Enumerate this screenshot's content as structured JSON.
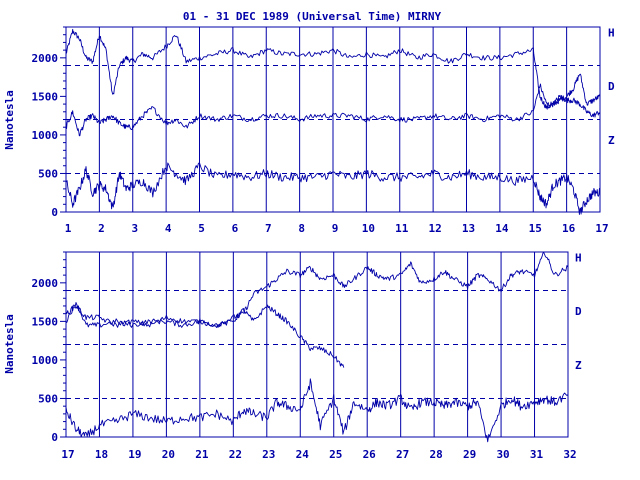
{
  "title": "01 - 31 DEC 1989 (Universal Time) MIRNY",
  "colors": {
    "ink": "#0000a8",
    "background": "#ffffff"
  },
  "chart_data": {
    "type": "line",
    "title": "01 - 31 DEC 1989 (Universal Time) MIRNY",
    "ylabel": "Nanotesla",
    "components": [
      "H",
      "D",
      "Z"
    ],
    "panels": [
      {
        "days": [
          1,
          17
        ],
        "ylim": [
          0,
          2400
        ],
        "yticks": [
          0,
          500,
          1000,
          1500,
          2000
        ],
        "xticks": [
          "1",
          "2",
          "3",
          "4",
          "5",
          "6",
          "7",
          "8",
          "9",
          "10",
          "11",
          "12",
          "13",
          "14",
          "15",
          "16",
          "17"
        ],
        "baselines": {
          "H": 1900,
          "D": 1200,
          "Z": 500
        },
        "series": [
          {
            "name": "H",
            "x": [
              1,
              1.2,
              1.4,
              1.6,
              1.8,
              2,
              2.2,
              2.4,
              2.6,
              2.8,
              3,
              3.3,
              3.6,
              4,
              4.3,
              4.6,
              5,
              5.5,
              6,
              6.5,
              7,
              7.5,
              8,
              8.5,
              9,
              9.5,
              10,
              10.5,
              11,
              11.5,
              12,
              12.5,
              13,
              13.5,
              14,
              14.5,
              15,
              15.2,
              15.4,
              15.6,
              15.8,
              16,
              16.2,
              16.4,
              16.6,
              16.8,
              17
            ],
            "y": [
              2050,
              2350,
              2250,
              2000,
              1950,
              2300,
              2100,
              1500,
              1900,
              2000,
              1950,
              2050,
              2000,
              2150,
              2300,
              1950,
              2000,
              2050,
              2100,
              2000,
              2100,
              2050,
              2050,
              2050,
              2100,
              2000,
              2050,
              2000,
              2100,
              2000,
              2050,
              1950,
              2050,
              2000,
              2000,
              2050,
              2100,
              1500,
              1350,
              1400,
              1450,
              1500,
              1600,
              1800,
              1400,
              1450,
              1500
            ]
          },
          {
            "name": "D",
            "x": [
              1,
              1.2,
              1.4,
              1.6,
              1.8,
              2,
              2.2,
              2.4,
              2.6,
              2.8,
              3,
              3.3,
              3.6,
              4,
              4.3,
              4.6,
              5,
              5.5,
              6,
              6.5,
              7,
              7.5,
              8,
              8.5,
              9,
              9.5,
              10,
              10.5,
              11,
              11.5,
              12,
              12.5,
              13,
              13.5,
              14,
              14.5,
              15,
              15.2,
              15.4,
              15.6,
              15.8,
              16,
              16.2,
              16.4,
              16.6,
              16.8,
              17
            ],
            "y": [
              1100,
              1300,
              1000,
              1200,
              1250,
              1150,
              1200,
              1250,
              1150,
              1100,
              1100,
              1250,
              1350,
              1150,
              1200,
              1100,
              1250,
              1200,
              1250,
              1200,
              1250,
              1250,
              1200,
              1250,
              1250,
              1250,
              1200,
              1250,
              1200,
              1200,
              1250,
              1200,
              1250,
              1200,
              1250,
              1200,
              1300,
              1650,
              1400,
              1400,
              1500,
              1450,
              1450,
              1400,
              1300,
              1250,
              1300
            ]
          },
          {
            "name": "Z",
            "x": [
              1,
              1.2,
              1.4,
              1.6,
              1.8,
              2,
              2.2,
              2.4,
              2.6,
              2.8,
              3,
              3.3,
              3.6,
              4,
              4.3,
              4.6,
              5,
              5.5,
              6,
              6.5,
              7,
              7.5,
              8,
              8.5,
              9,
              9.5,
              10,
              10.5,
              11,
              11.5,
              12,
              12.5,
              13,
              13.5,
              14,
              14.5,
              15,
              15.2,
              15.4,
              15.6,
              15.8,
              16,
              16.2,
              16.4,
              16.6,
              16.8,
              17
            ],
            "y": [
              400,
              100,
              300,
              550,
              250,
              350,
              300,
              50,
              500,
              300,
              350,
              400,
              250,
              600,
              500,
              400,
              600,
              450,
              500,
              450,
              500,
              450,
              450,
              450,
              500,
              450,
              500,
              450,
              450,
              450,
              500,
              450,
              500,
              450,
              450,
              400,
              450,
              200,
              100,
              350,
              400,
              450,
              300,
              0,
              150,
              250,
              250
            ]
          }
        ]
      },
      {
        "days": [
          17,
          32
        ],
        "ylim": [
          0,
          2400
        ],
        "yticks": [
          0,
          500,
          1000,
          1500,
          2000
        ],
        "xticks": [
          "17",
          "18",
          "19",
          "20",
          "21",
          "22",
          "23",
          "24",
          "25",
          "26",
          "27",
          "28",
          "29",
          "30",
          "31",
          "32"
        ],
        "baselines": {
          "H": 1900,
          "D": 1200,
          "Z": 500
        },
        "series": [
          {
            "name": "H",
            "x": [
              17,
              17.3,
              17.6,
              18,
              18.5,
              19,
              19.5,
              20,
              20.5,
              21,
              21.5,
              22,
              22.3,
              22.6,
              23,
              23.3,
              23.6,
              24,
              24.3,
              24.6,
              25,
              25.3,
              25.6,
              26,
              26.3,
              26.6,
              27,
              27.3,
              27.6,
              28,
              28.3,
              28.6,
              29,
              29.3,
              29.6,
              30,
              30.3,
              30.6,
              31,
              31.3,
              31.6,
              32
            ],
            "y": [
              1500,
              1750,
              1450,
              1450,
              1500,
              1450,
              1500,
              1500,
              1450,
              1500,
              1450,
              1550,
              1600,
              1850,
              1950,
              2050,
              2150,
              2100,
              2200,
              2050,
              2100,
              1950,
              2050,
              2200,
              2100,
              2050,
              2100,
              2250,
              2000,
              2050,
              2150,
              2050,
              1950,
              2100,
              2050,
              1900,
              2100,
              2150,
              2100,
              2400,
              2100,
              2200
            ]
          },
          {
            "name": "D",
            "x": [
              17,
              17.3,
              17.6,
              18,
              18.5,
              19,
              19.5,
              20,
              20.5,
              21,
              21.5,
              22,
              22.3,
              22.6,
              23,
              23.3,
              23.6,
              24,
              24.3,
              24.6,
              25,
              25.3
            ],
            "y": [
              1600,
              1700,
              1550,
              1550,
              1450,
              1500,
              1450,
              1550,
              1500,
              1500,
              1450,
              1500,
              1650,
              1500,
              1700,
              1600,
              1500,
              1300,
              1150,
              1150,
              1050,
              900
            ]
          },
          {
            "name": "Z",
            "x": [
              17,
              17.3,
              17.6,
              18,
              18.5,
              19,
              19.5,
              20,
              20.5,
              21,
              21.5,
              22,
              22.3,
              22.6,
              23,
              23.3,
              23.6,
              24,
              24.3,
              24.6,
              25,
              25.3,
              25.6,
              26,
              26.3,
              26.6,
              27,
              27.3,
              27.6,
              28,
              28.3,
              28.6,
              29,
              29.3,
              29.6,
              30,
              30.3,
              30.6,
              31,
              31.3,
              31.6,
              32
            ],
            "y": [
              350,
              100,
              0,
              150,
              200,
              300,
              250,
              200,
              250,
              250,
              300,
              200,
              350,
              300,
              250,
              450,
              400,
              350,
              700,
              150,
              500,
              50,
              450,
              350,
              450,
              400,
              500,
              350,
              450,
              450,
              400,
              450,
              400,
              450,
              -50,
              400,
              500,
              400,
              450,
              500,
              450,
              550
            ]
          }
        ]
      }
    ]
  }
}
